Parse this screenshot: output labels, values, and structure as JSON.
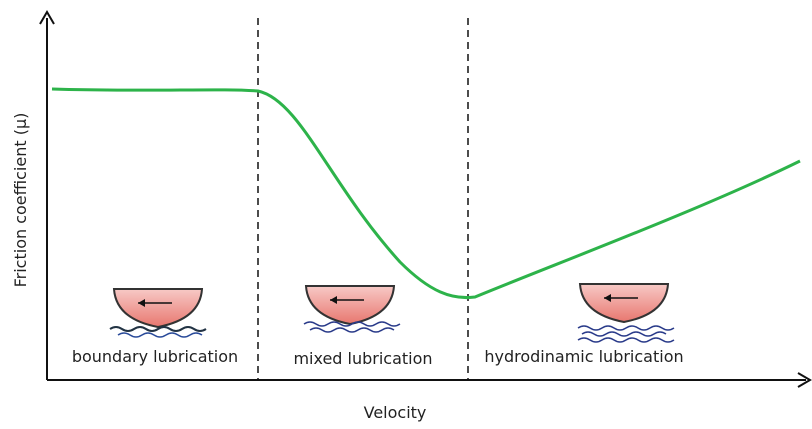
{
  "axes": {
    "y_label": "Friction coefficient (μ)",
    "x_label": "Velocity"
  },
  "regions": [
    {
      "label": "boundary lubrication"
    },
    {
      "label": "mixed lubrication"
    },
    {
      "label": "hydrodinamic lubrication"
    }
  ]
}
